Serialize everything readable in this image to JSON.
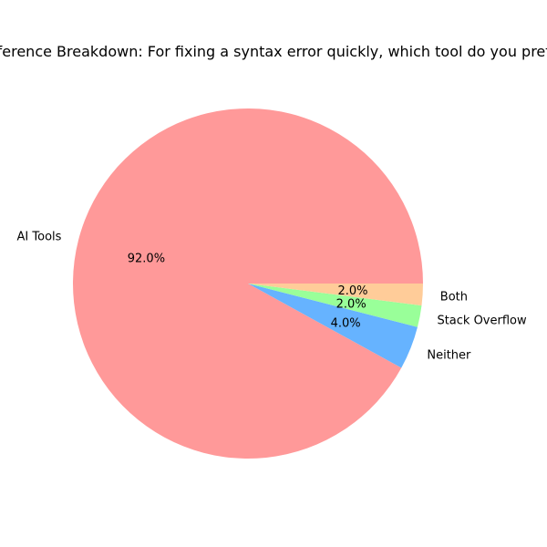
{
  "chart_data": {
    "type": "pie",
    "title": "Preference Breakdown: For fixing a syntax error quickly, which tool do you prefer?",
    "categories": [
      "AI Tools",
      "Neither",
      "Stack Overflow",
      "Both"
    ],
    "values": [
      92.0,
      4.0,
      2.0,
      2.0
    ],
    "value_labels": [
      "92.0%",
      "4.0%",
      "2.0%",
      "2.0%"
    ],
    "colors": [
      "#ff9999",
      "#66b3ff",
      "#99ff99",
      "#ffcc99"
    ],
    "start_angle": "0 degrees (3 o'clock)",
    "direction": "clockwise"
  }
}
